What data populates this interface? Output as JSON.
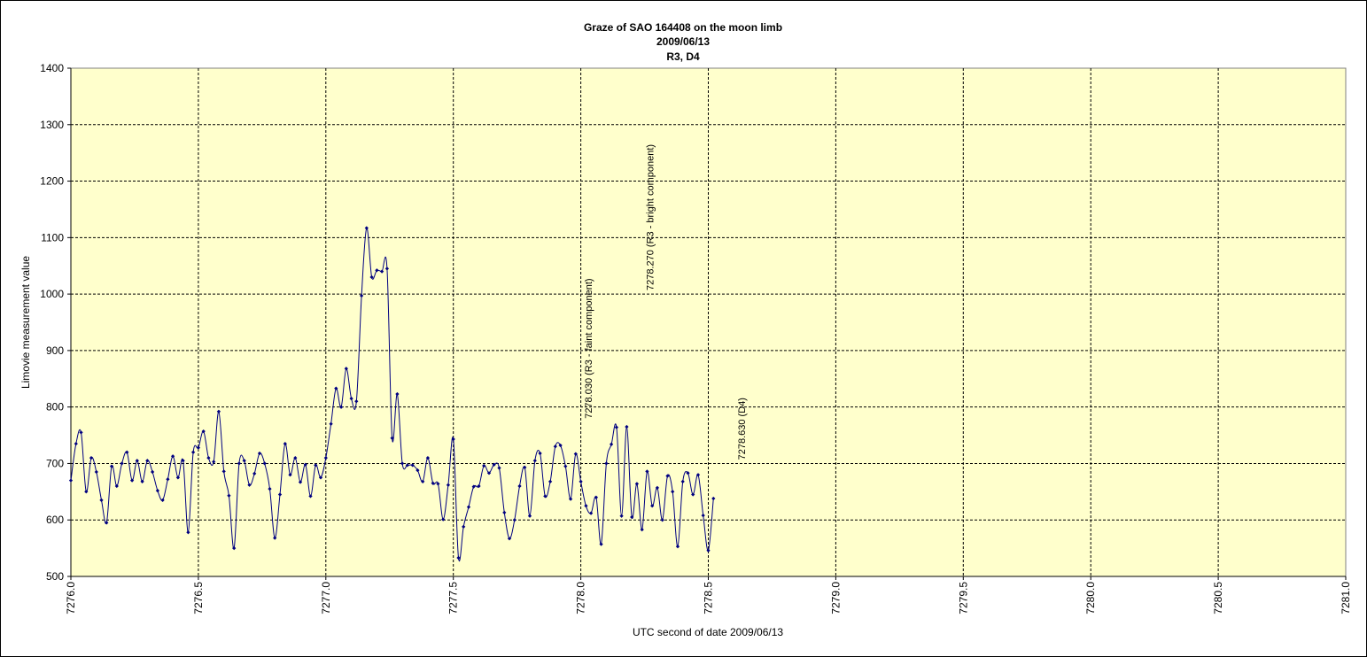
{
  "chart_data": {
    "type": "line",
    "title_lines": [
      "Graze of SAO 164408 on the moon limb",
      "2009/06/13",
      "R3, D4"
    ],
    "xlabel": "UTC second of date 2009/06/13",
    "ylabel": "Limovie measurement value",
    "xlim": [
      7276.0,
      7281.0
    ],
    "ylim": [
      500,
      1400
    ],
    "x_ticks": [
      7276.0,
      7276.5,
      7277.0,
      7277.5,
      7278.0,
      7278.5,
      7279.0,
      7279.5,
      7280.0,
      7280.5,
      7281.0
    ],
    "x_tick_labels": [
      "7276.0",
      "7276.5",
      "7277.0",
      "7277.5",
      "7278.0",
      "7278.5",
      "7279.0",
      "7279.5",
      "7280.0",
      "7280.5",
      "7281.0"
    ],
    "y_ticks": [
      500,
      600,
      700,
      800,
      900,
      1000,
      1100,
      1200,
      1300,
      1400
    ],
    "y_tick_labels": [
      "500",
      "600",
      "700",
      "800",
      "900",
      "1000",
      "1100",
      "1200",
      "1300",
      "1400"
    ],
    "grid": true,
    "plot_background": "#ffffcc",
    "line_color": "#000080",
    "series": [
      {
        "x_start": 7276.0,
        "x_step": 0.02,
        "values": [
          670,
          735,
          755,
          650,
          710,
          685,
          635,
          595,
          695,
          660,
          700,
          720,
          670,
          705,
          668,
          705,
          685,
          652,
          635,
          672,
          713,
          675,
          705,
          578,
          720,
          728,
          757,
          710,
          703,
          792,
          686,
          643,
          550,
          700,
          705,
          662,
          682,
          718,
          700,
          655,
          568,
          645,
          735,
          680,
          710,
          667,
          698,
          642,
          697,
          675,
          710,
          770,
          833,
          800,
          868,
          815,
          810,
          997,
          1117,
          1030,
          1042,
          1040,
          1045,
          745,
          823,
          700,
          697,
          697,
          688,
          668,
          710,
          665,
          664,
          601,
          662,
          743,
          533,
          588,
          623,
          659,
          660,
          696,
          683,
          698,
          692,
          613,
          567,
          600,
          660,
          693,
          607,
          705,
          718,
          642,
          668,
          730,
          732,
          695,
          637,
          717,
          668,
          625,
          612,
          640,
          557,
          700,
          734,
          764,
          607,
          765,
          605,
          664,
          583,
          686,
          625,
          657,
          600,
          678,
          650,
          553,
          668,
          683,
          645,
          680,
          608,
          546,
          638
        ]
      }
    ],
    "annotations": [
      {
        "x": 7278.03,
        "y": 770,
        "text": "7278.030 (R3 - faint component)"
      },
      {
        "x": 7278.27,
        "y": 997,
        "text": "7278.270 (R3 - bright component)"
      },
      {
        "x": 7278.63,
        "y": 697,
        "text": "7278.630 (D4)"
      }
    ]
  }
}
